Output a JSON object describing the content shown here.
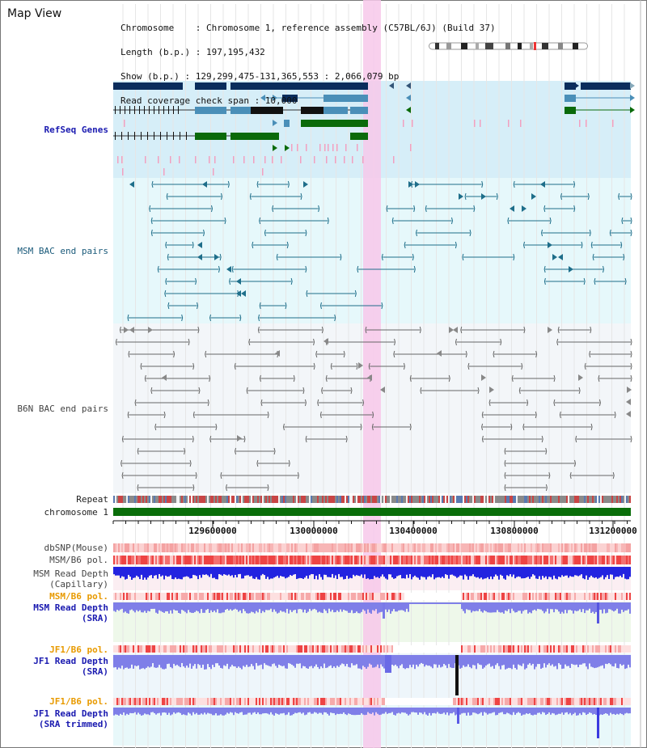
{
  "title": "Map View",
  "info": {
    "chromosome": "Chromosome    : Chromosome 1, reference assembly (C57BL/6J) (Build 37)",
    "length": "Length (b.p.) : 197,195,432",
    "show": "Show (b.p.) : 129,299,475-131,365,553 : 2,066,079 bp",
    "span": "Read coverage check span : 10,000"
  },
  "tracks": {
    "refseq": "RefSeq Genes",
    "msm_bac": "MSM BAC end pairs",
    "b6n_bac": "B6N BAC end pairs",
    "repeat": "Repeat",
    "chrom": "chromosome 1",
    "dbsnp": "dbSNP(Mouse)",
    "msm_b6_pol_1": "MSM/B6 pol.",
    "msm_depth_cap": "MSM Read Depth",
    "msm_depth_cap_sub": "(Capillary)",
    "msm_b6_pol_2": "MSM/B6 pol.",
    "msm_depth_sra": "MSM Read Depth",
    "msm_depth_sra_sub": "(SRA)",
    "jf1_pol_1": "JF1/B6 pol.",
    "jf1_depth_sra": "JF1 Read Depth",
    "jf1_depth_sra_sub": "(SRA)",
    "jf1_pol_2": "JF1/B6 pol.",
    "jf1_depth_trim": "JF1 Read Depth",
    "jf1_depth_trim_sub": "(SRA trimmed)"
  },
  "axis": {
    "ticks": [
      "129600000",
      "130000000",
      "130400000",
      "130800000",
      "131200000"
    ]
  },
  "colors": {
    "refseq_dark": "#0b2d5c",
    "refseq_mid": "#4a8fb8",
    "refseq_green": "#0a6a0a",
    "msm_bac": "#1e6e8a",
    "b6n_bac": "#666666",
    "highlight": "#f7c8ea",
    "depth_blue": "#2323e0",
    "depth_light": "#7f7fe8",
    "pol_red": "#ee4444",
    "chrom_green": "#0a6e0a"
  }
}
